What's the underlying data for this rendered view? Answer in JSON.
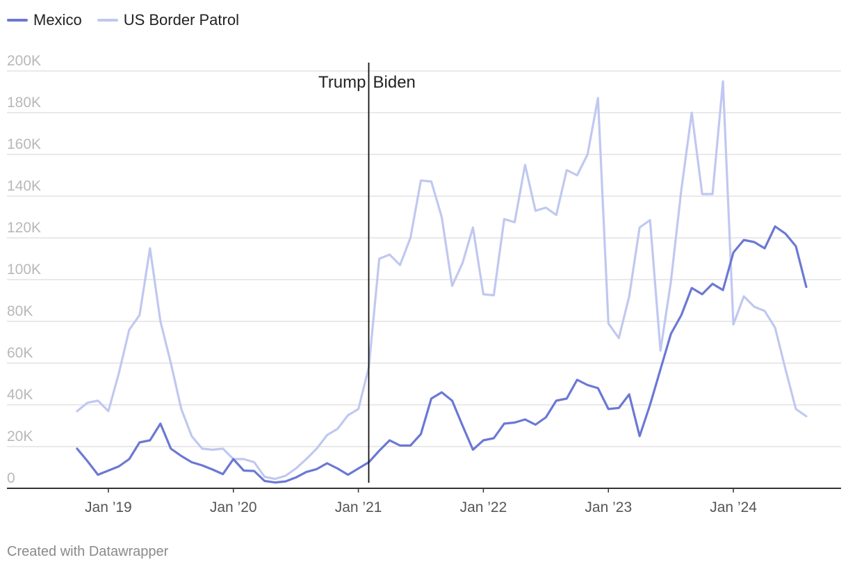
{
  "chart_data": {
    "type": "line",
    "legend": [
      {
        "name": "Mexico",
        "color": "#6b78d4"
      },
      {
        "name": "US Border Patrol",
        "color": "#c0c8f0"
      }
    ],
    "x_start": "2018-10",
    "x_range": [
      2018.667,
      2024.75
    ],
    "ylim": [
      0,
      200000
    ],
    "yticks": [
      {
        "value": 200000,
        "label": "200K"
      },
      {
        "value": 180000,
        "label": "180K"
      },
      {
        "value": 160000,
        "label": "160K"
      },
      {
        "value": 140000,
        "label": "140K"
      },
      {
        "value": 120000,
        "label": "120K"
      },
      {
        "value": 100000,
        "label": "100K"
      },
      {
        "value": 80000,
        "label": "80K"
      },
      {
        "value": 60000,
        "label": "60K"
      },
      {
        "value": 40000,
        "label": "40K"
      },
      {
        "value": 20000,
        "label": "20K"
      },
      {
        "value": 0,
        "label": "0"
      }
    ],
    "xticks": [
      {
        "value": 2019.0,
        "label": "Jan ’19"
      },
      {
        "value": 2020.0,
        "label": "Jan ’20"
      },
      {
        "value": 2021.0,
        "label": "Jan ’21"
      },
      {
        "value": 2022.0,
        "label": "Jan ’22"
      },
      {
        "value": 2023.0,
        "label": "Jan ’23"
      },
      {
        "value": 2024.0,
        "label": "Jan ’24"
      }
    ],
    "annotations": {
      "x": 2021.083,
      "left_label": "Trump",
      "right_label": "Biden"
    },
    "series": [
      {
        "name": "Mexico",
        "color": "#6b78d4",
        "values": [
          19000,
          13000,
          6500,
          8500,
          10500,
          14000,
          22000,
          23000,
          31000,
          19000,
          15500,
          12500,
          11000,
          9000,
          6800,
          14000,
          8500,
          8300,
          3500,
          2800,
          3300,
          5200,
          7800,
          9200,
          12000,
          9500,
          6500,
          9500,
          12500,
          18000,
          23000,
          20500,
          20500,
          26000,
          43000,
          46000,
          42000,
          30000,
          18500,
          23000,
          24000,
          31000,
          31500,
          33000,
          30500,
          34000,
          42000,
          43000,
          52000,
          49500,
          48000,
          38000,
          38500,
          45000,
          25000,
          40000,
          57000,
          74000,
          83000,
          96000,
          93000,
          98000,
          95000,
          113000,
          119000,
          118000,
          115000,
          125500,
          122000,
          116000,
          96500
        ]
      },
      {
        "name": "US Border Patrol",
        "color": "#c0c8f0",
        "values": [
          37000,
          41000,
          42000,
          37000,
          55000,
          76000,
          83000,
          115000,
          80000,
          60000,
          38000,
          25000,
          19000,
          18500,
          19000,
          14000,
          14000,
          12500,
          5500,
          4500,
          6000,
          9500,
          14000,
          19000,
          25500,
          28500,
          35000,
          38000,
          58000,
          110000,
          112000,
          107000,
          120000,
          147500,
          147000,
          130000,
          97000,
          108000,
          125000,
          93000,
          92500,
          129000,
          127500,
          155000,
          133000,
          134500,
          131000,
          152500,
          150000,
          160000,
          187000,
          79000,
          72000,
          92000,
          125000,
          128500,
          66000,
          99000,
          143000,
          180000,
          141000,
          141000,
          195000,
          78500,
          92000,
          87000,
          85000,
          77000,
          57000,
          38000,
          34500
        ]
      }
    ]
  },
  "footer": {
    "credit": "Created with Datawrapper"
  }
}
